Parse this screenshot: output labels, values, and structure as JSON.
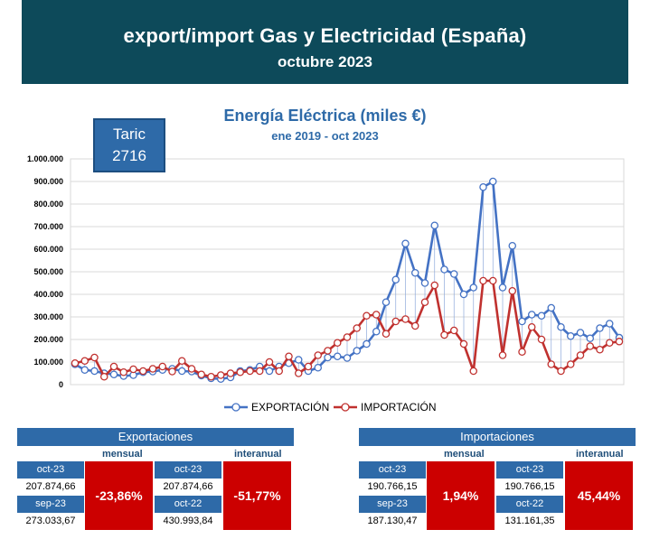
{
  "header": {
    "title": "export/import Gas y Electricidad (España)",
    "subtitle": "octubre 2023"
  },
  "taric": {
    "label": "Taric",
    "code": "2716"
  },
  "chart_data": {
    "type": "line",
    "title": "Energía Eléctrica (miles €)",
    "subtitle": "ene 2019 - oct 2023",
    "ylim": [
      0,
      1000000
    ],
    "yticks": [
      "0",
      "100.000",
      "200.000",
      "300.000",
      "400.000",
      "500.000",
      "600.000",
      "700.000",
      "800.000",
      "900.000",
      "1.000.000"
    ],
    "ytick_values": [
      0,
      100000,
      200000,
      300000,
      400000,
      500000,
      600000,
      700000,
      800000,
      900000,
      1000000
    ],
    "grid": true,
    "legend_position": "bottom",
    "series": [
      {
        "name": "EXPORTACIÓN",
        "color": "#4472c4",
        "values": [
          90000,
          65000,
          60000,
          50000,
          45000,
          38000,
          42000,
          55000,
          58000,
          65000,
          70000,
          60000,
          58000,
          40000,
          28000,
          25000,
          32000,
          60000,
          65000,
          80000,
          60000,
          80000,
          95000,
          110000,
          60000,
          75000,
          120000,
          125000,
          118000,
          150000,
          180000,
          235000,
          365000,
          465000,
          625000,
          495000,
          450000,
          705000,
          510000,
          490000,
          400000,
          430000,
          875000,
          900000,
          430000,
          615000,
          280000,
          310000,
          305000,
          340000,
          255000,
          215000,
          230000,
          205000,
          250000,
          270000,
          207875
        ]
      },
      {
        "name": "IMPORTACIÓN",
        "color": "#c0312f",
        "values": [
          95000,
          105000,
          120000,
          35000,
          80000,
          55000,
          68000,
          60000,
          70000,
          80000,
          58000,
          105000,
          70000,
          45000,
          35000,
          42000,
          50000,
          55000,
          60000,
          60000,
          100000,
          60000,
          125000,
          50000,
          80000,
          130000,
          150000,
          185000,
          210000,
          250000,
          305000,
          310000,
          225000,
          280000,
          290000,
          260000,
          365000,
          440000,
          220000,
          240000,
          180000,
          60000,
          460000,
          460000,
          130000,
          415000,
          145000,
          255000,
          200000,
          90000,
          60000,
          90000,
          130000,
          170000,
          155000,
          185000,
          190766
        ]
      }
    ]
  },
  "exports": {
    "title": "Exportaciones",
    "monthly_label": "mensual",
    "annual_label": "interanual",
    "cur_label": "oct-23",
    "cur_value": "207.874,66",
    "prev_label": "sep-23",
    "prev_value": "273.033,67",
    "monthly_pct": "-23,86%",
    "cur2_label": "oct-23",
    "cur2_value": "207.874,66",
    "yoy_label": "oct-22",
    "yoy_value": "430.993,84",
    "annual_pct": "-51,77%"
  },
  "imports": {
    "title": "Importaciones",
    "monthly_label": "mensual",
    "annual_label": "interanual",
    "cur_label": "oct-23",
    "cur_value": "190.766,15",
    "prev_label": "sep-23",
    "prev_value": "187.130,47",
    "monthly_pct": "1,94%",
    "cur2_label": "oct-23",
    "cur2_value": "190.766,15",
    "yoy_label": "oct-22",
    "yoy_value": "131.161,35",
    "annual_pct": "45,44%"
  }
}
